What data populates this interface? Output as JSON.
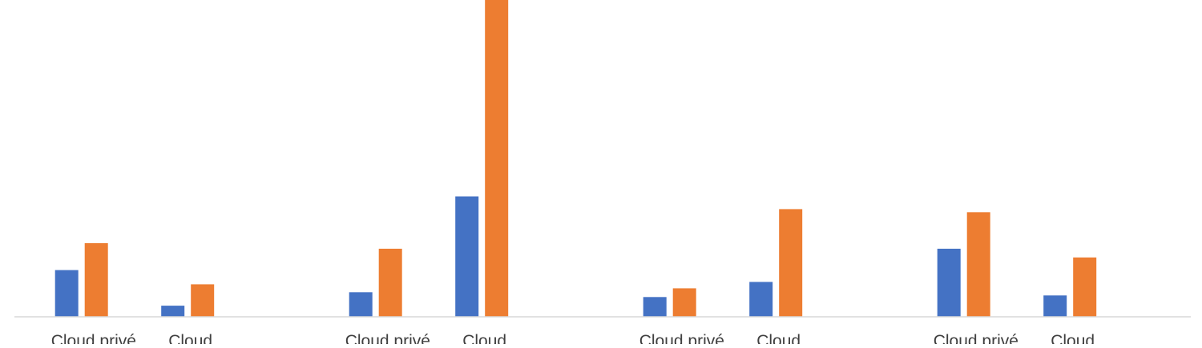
{
  "chart_data": {
    "type": "bar",
    "groups": [
      {
        "categories": [
          "Cloud privé",
          "Cloud"
        ]
      },
      {
        "categories": [
          "Cloud privé",
          "Cloud"
        ]
      },
      {
        "categories": [
          "Cloud privé",
          "Cloud"
        ]
      },
      {
        "categories": [
          "Cloud privé",
          "Cloud"
        ]
      }
    ],
    "series": [
      {
        "color": "#4472C4",
        "values": [
          59,
          14,
          31,
          152,
          25,
          44,
          86,
          27
        ]
      },
      {
        "color": "#ED7D31",
        "values": [
          93,
          41,
          86,
          400,
          36,
          136,
          132,
          75
        ]
      }
    ],
    "ylim": [
      0,
      400
    ],
    "grid": false,
    "legend": "none",
    "axis_color": "#D9D9D9"
  }
}
